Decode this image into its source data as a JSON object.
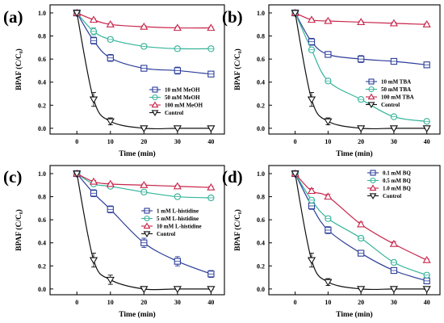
{
  "colors": {
    "navy": "#2b3d98",
    "teal": "#35b39a",
    "crimson": "#c8244a",
    "black": "#111111"
  },
  "markers": {
    "navy": "square-marker",
    "teal": "circle-marker",
    "crimson": "triangle-up-marker",
    "black": "triangle-down-marker"
  },
  "chart_data": [
    {
      "type": "line",
      "tag": "(a)",
      "xlabel": "Time (min)",
      "ylabel": "BPAF (C/C₀)",
      "xlim": [
        -8,
        44
      ],
      "ylim": [
        -0.05,
        1.07
      ],
      "xticks": [
        "0",
        "10",
        "20",
        "30",
        "40"
      ],
      "yticks": [
        "0.0",
        "0.2",
        "0.4",
        "0.6",
        "0.8",
        "1.0"
      ],
      "legend_position": "lower-right",
      "series": [
        {
          "name": "10  mM MeOH",
          "color": "navy",
          "x": [
            0,
            5,
            10,
            20,
            30,
            40
          ],
          "values": [
            1.0,
            0.76,
            0.61,
            0.52,
            0.5,
            0.47
          ],
          "err": [
            0,
            0.03,
            0.03,
            0.02,
            0.03,
            0.02
          ]
        },
        {
          "name": "50  mM MeOH",
          "color": "teal",
          "x": [
            0,
            5,
            10,
            20,
            30,
            40
          ],
          "values": [
            1.0,
            0.84,
            0.77,
            0.71,
            0.69,
            0.69
          ],
          "err": [
            0,
            0.03,
            0.02,
            0.02,
            0.02,
            0.01
          ]
        },
        {
          "name": "100 mM MeOH",
          "color": "crimson",
          "x": [
            0,
            5,
            10,
            20,
            30,
            40
          ],
          "values": [
            1.0,
            0.94,
            0.9,
            0.88,
            0.87,
            0.87
          ],
          "err": [
            0,
            0.01,
            0.01,
            0.01,
            0.01,
            0.01
          ]
        },
        {
          "name": "Control",
          "color": "black",
          "x": [
            0,
            5,
            10,
            20,
            30,
            40
          ],
          "values": [
            1.0,
            0.25,
            0.06,
            0.0,
            0.0,
            0.0
          ],
          "err": [
            0,
            0.06,
            0.03,
            0.005,
            0.005,
            0.005
          ]
        }
      ]
    },
    {
      "type": "line",
      "tag": "(b)",
      "xlabel": "Time (min)",
      "ylabel": "BPAF (C/C₀)",
      "xlim": [
        -8,
        44
      ],
      "ylim": [
        -0.05,
        1.07
      ],
      "xticks": [
        "0",
        "10",
        "20",
        "30",
        "40"
      ],
      "yticks": [
        "0.0",
        "0.2",
        "0.4",
        "0.6",
        "0.8",
        "1.0"
      ],
      "legend_position": "center-right",
      "series": [
        {
          "name": "10 mM TBA",
          "color": "navy",
          "x": [
            0,
            5,
            10,
            20,
            30,
            40
          ],
          "values": [
            1.0,
            0.75,
            0.64,
            0.6,
            0.58,
            0.55
          ],
          "err": [
            0,
            0.03,
            0.02,
            0.03,
            0.02,
            0.02
          ]
        },
        {
          "name": "50 mM TBA",
          "color": "teal",
          "x": [
            0,
            5,
            10,
            20,
            30,
            40
          ],
          "values": [
            1.0,
            0.68,
            0.41,
            0.25,
            0.1,
            0.06
          ],
          "err": [
            0,
            0.02,
            0.02,
            0.01,
            0.01,
            0.01
          ]
        },
        {
          "name": "100 mM TBA",
          "color": "crimson",
          "x": [
            0,
            5,
            10,
            20,
            30,
            40
          ],
          "values": [
            1.0,
            0.94,
            0.93,
            0.92,
            0.91,
            0.9
          ],
          "err": [
            0,
            0.01,
            0.01,
            0.01,
            0.01,
            0.01
          ]
        },
        {
          "name": "Control",
          "color": "black",
          "x": [
            0,
            5,
            10,
            20,
            30,
            40
          ],
          "values": [
            1.0,
            0.25,
            0.06,
            0.0,
            0.0,
            0.0
          ],
          "err": [
            0,
            0.06,
            0.03,
            0.005,
            0.005,
            0.005
          ]
        }
      ]
    },
    {
      "type": "line",
      "tag": "(c)",
      "xlabel": "Time (min)",
      "ylabel": "BPAF (C/C₀)",
      "xlim": [
        -8,
        44
      ],
      "ylim": [
        -0.05,
        1.07
      ],
      "xticks": [
        "0",
        "10",
        "20",
        "30",
        "40"
      ],
      "yticks": [
        "0.0",
        "0.2",
        "0.4",
        "0.6",
        "0.8",
        "1.0"
      ],
      "legend_position": "center-right",
      "series": [
        {
          "name": "1 mM L-histidine",
          "color": "navy",
          "x": [
            0,
            5,
            10,
            20,
            30,
            40
          ],
          "values": [
            1.0,
            0.83,
            0.69,
            0.4,
            0.24,
            0.13
          ],
          "err": [
            0,
            0.03,
            0.03,
            0.04,
            0.04,
            0.03
          ]
        },
        {
          "name": "5 mM L-histidine",
          "color": "teal",
          "x": [
            0,
            5,
            10,
            20,
            30,
            40
          ],
          "values": [
            1.0,
            0.91,
            0.89,
            0.84,
            0.8,
            0.79
          ],
          "err": [
            0,
            0.01,
            0.01,
            0.02,
            0.02,
            0.02
          ]
        },
        {
          "name": "10 mM L-histidine",
          "color": "crimson",
          "x": [
            0,
            5,
            10,
            20,
            30,
            40
          ],
          "values": [
            1.0,
            0.93,
            0.91,
            0.9,
            0.89,
            0.88
          ],
          "err": [
            0,
            0.01,
            0.01,
            0.01,
            0.01,
            0.01
          ]
        },
        {
          "name": "Control",
          "color": "black",
          "x": [
            0,
            5,
            10,
            20,
            30,
            40
          ],
          "values": [
            1.0,
            0.25,
            0.08,
            0.0,
            0.0,
            0.0
          ],
          "err": [
            0,
            0.06,
            0.04,
            0.005,
            0.005,
            0.005
          ]
        }
      ]
    },
    {
      "type": "line",
      "tag": "(d)",
      "xlabel": "Time (min)",
      "ylabel": "BPAF (C/C₀)",
      "xlim": [
        -8,
        44
      ],
      "ylim": [
        -0.05,
        1.07
      ],
      "xticks": [
        "0",
        "10",
        "20",
        "30",
        "40"
      ],
      "yticks": [
        "0.0",
        "0.2",
        "0.4",
        "0.6",
        "0.8",
        "1.0"
      ],
      "legend_position": "top-right",
      "series": [
        {
          "name": "0.1 mM BQ",
          "color": "navy",
          "x": [
            0,
            5,
            10,
            20,
            30,
            40
          ],
          "values": [
            1.0,
            0.72,
            0.51,
            0.31,
            0.16,
            0.07
          ],
          "err": [
            0,
            0.03,
            0.03,
            0.02,
            0.02,
            0.02
          ]
        },
        {
          "name": "0.5 mM BQ",
          "color": "teal",
          "x": [
            0,
            5,
            10,
            20,
            30,
            40
          ],
          "values": [
            1.0,
            0.77,
            0.61,
            0.44,
            0.23,
            0.12
          ],
          "err": [
            0,
            0.02,
            0.02,
            0.02,
            0.02,
            0.02
          ]
        },
        {
          "name": "1.0 mM BQ",
          "color": "crimson",
          "x": [
            0,
            5,
            10,
            20,
            30,
            40
          ],
          "values": [
            1.0,
            0.85,
            0.8,
            0.56,
            0.39,
            0.25
          ],
          "err": [
            0,
            0.02,
            0.02,
            0.02,
            0.02,
            0.01
          ]
        },
        {
          "name": "Control",
          "color": "black",
          "x": [
            0,
            5,
            10,
            20,
            30,
            40
          ],
          "values": [
            1.0,
            0.25,
            0.06,
            0.0,
            0.0,
            0.0
          ],
          "err": [
            0,
            0.06,
            0.03,
            0.005,
            0.005,
            0.005
          ]
        }
      ]
    }
  ]
}
